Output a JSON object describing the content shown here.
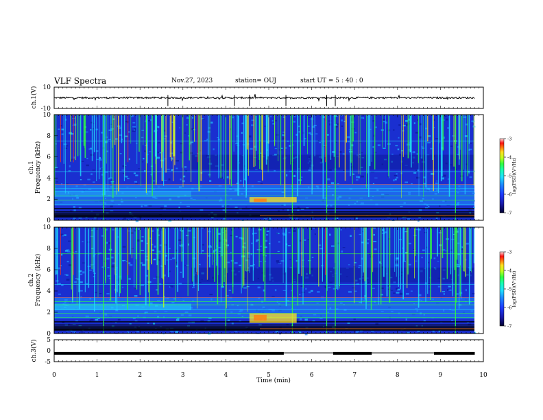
{
  "header": {
    "title": "VLF Spectra",
    "date": "Nov.27, 2023",
    "station": "station= OUJ",
    "start": "start  UT =   5 : 40 : 0"
  },
  "colors": {
    "colormap": [
      "#000000",
      "#1a1aa8",
      "#1e3cff",
      "#1f8bff",
      "#20e0ff",
      "#18ffb0",
      "#30ff40",
      "#c0ff20",
      "#ffe020",
      "#ff7a10",
      "#ff1010",
      "#ffd0d0"
    ]
  },
  "chart_data": [
    {
      "type": "line",
      "id": "ch1",
      "ylabel": "ch.1(V)",
      "ylim": [
        -10,
        10
      ],
      "yticks": [
        "10",
        "-10"
      ],
      "xlim": [
        0,
        10
      ],
      "baseline": 0,
      "description_values": "waveform near 0 V with small spikes"
    },
    {
      "type": "heatmap",
      "id": "ch1-spec",
      "ylabel_channel": "ch.1",
      "ylabel": "Frequency (kHz)",
      "ylim": [
        0,
        10
      ],
      "yticks": [
        "0",
        "2",
        "4",
        "6",
        "8",
        "10"
      ],
      "xlim": [
        0,
        10
      ],
      "colorbar": {
        "label": "log(PSD)(V²/Hz)",
        "range": [
          -7,
          -3
        ],
        "ticks": [
          "-3",
          "-4",
          "-5",
          "-6",
          "-7"
        ]
      }
    },
    {
      "type": "heatmap",
      "id": "ch2-spec",
      "ylabel_channel": "ch.2",
      "ylabel": "Frequency (kHz)",
      "ylim": [
        0,
        10
      ],
      "yticks": [
        "0",
        "2",
        "4",
        "6",
        "8",
        "10"
      ],
      "xlim": [
        0,
        10
      ],
      "colorbar": {
        "label": "log(PSD)(V²/Hz)",
        "range": [
          -7,
          -3
        ],
        "ticks": [
          "-3",
          "-4",
          "-5",
          "-6",
          "-7"
        ]
      }
    },
    {
      "type": "line",
      "id": "ch3",
      "ylabel": "ch.3(V)",
      "ylim": [
        -5,
        5
      ],
      "yticks": [
        "5",
        "0",
        "-5"
      ],
      "xlim": [
        0,
        10
      ],
      "xlabel": "Time  (min)",
      "xticks": [
        "0",
        "1",
        "2",
        "3",
        "4",
        "5",
        "6",
        "7",
        "8",
        "9",
        "10"
      ],
      "segments": [
        {
          "x0": 0.0,
          "x1": 5.35,
          "y": -1.2
        },
        {
          "x0": 5.35,
          "x1": 6.5,
          "y": -1.0
        },
        {
          "x0": 6.5,
          "x1": 7.4,
          "y": -1.2
        },
        {
          "x0": 7.4,
          "x1": 8.85,
          "y": -1.0
        },
        {
          "x0": 8.85,
          "x1": 9.8,
          "y": -1.2
        }
      ]
    }
  ]
}
